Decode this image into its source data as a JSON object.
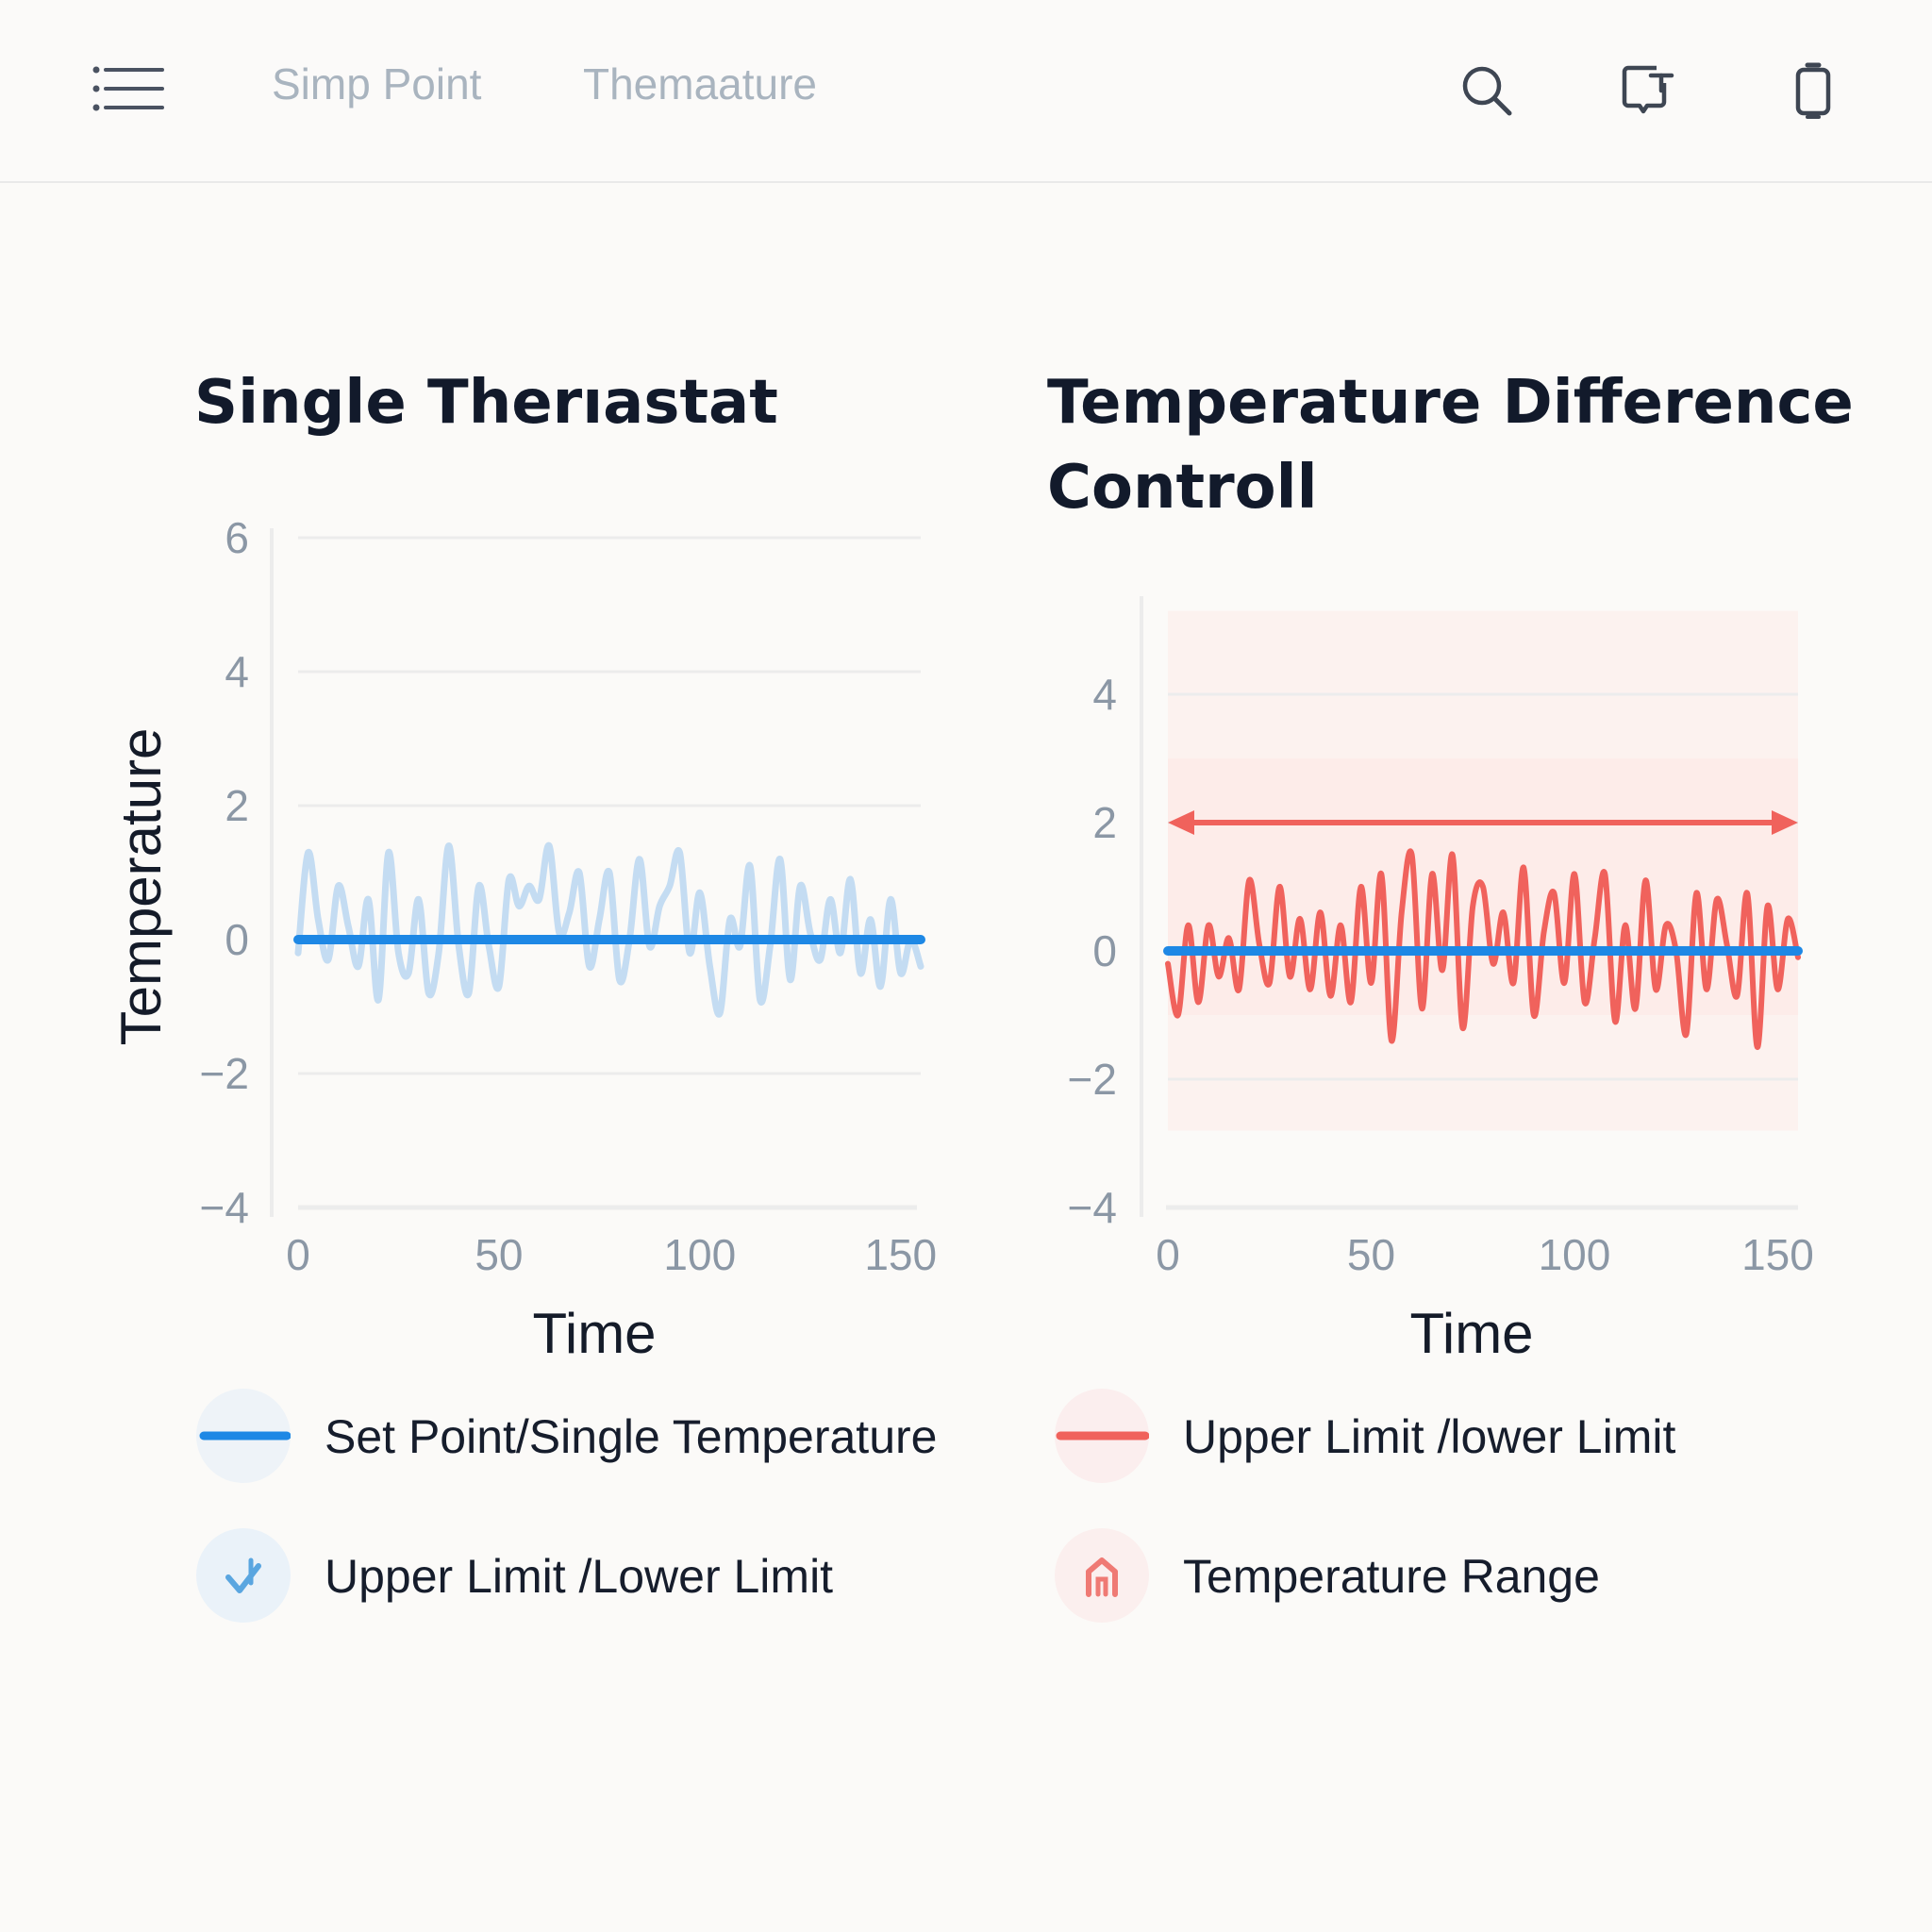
{
  "header": {
    "tabs": [
      {
        "label": "Simp Point"
      },
      {
        "label": "Themaature"
      }
    ],
    "icons": [
      "menu-icon",
      "search-icon",
      "export-icon",
      "battery-icon"
    ]
  },
  "colors": {
    "blue": "#1e88e5",
    "blue_light": "#c4dcf2",
    "red": "#f0625c",
    "red_band": "#fdebe7",
    "grid": "#ececec",
    "text_dark": "#141b29",
    "tick": "#8b97a5"
  },
  "legend": [
    {
      "label": "Set Point/Single Temperature",
      "icon": "blue-line-icon"
    },
    {
      "label": "Upper Limit /lower Limit",
      "icon": "red-line-icon"
    },
    {
      "label": "Upper Limit /Lower Limit",
      "icon": "check-arrow-icon"
    },
    {
      "label": "Temperature Range",
      "icon": "house-icon"
    }
  ],
  "chart_data": [
    {
      "type": "line",
      "title": "Single Therıastat",
      "xlabel": "Time",
      "ylabel": "Temperature",
      "xlim": [
        0,
        155
      ],
      "ylim": [
        -4,
        6
      ],
      "xticks": [
        0,
        50,
        100,
        150
      ],
      "yticks": [
        6,
        4,
        2,
        0,
        -2,
        -4
      ],
      "grid": true,
      "series": [
        {
          "role": "fluctuation",
          "x": [
            0,
            2.5,
            5,
            7.5,
            10,
            12.5,
            15,
            17.5,
            20,
            22.5,
            25,
            27.5,
            30,
            32.5,
            35,
            37.5,
            40,
            42.5,
            45,
            47.5,
            50,
            52.5,
            55,
            57.5,
            60,
            62.5,
            65,
            67.5,
            70,
            72.5,
            75,
            77.5,
            80,
            82.5,
            85,
            87.5,
            90,
            92.5,
            95,
            97.5,
            100,
            102.5,
            105,
            107.5,
            110,
            112.5,
            115,
            117.5,
            120,
            122.5,
            125,
            127.5,
            130,
            132.5,
            135,
            137.5,
            140,
            142.5,
            145,
            147.5,
            150,
            152.5,
            155
          ],
          "y": [
            -0.2,
            1.3,
            0.3,
            -0.3,
            0.8,
            0.2,
            -0.4,
            0.6,
            -0.9,
            1.3,
            -0.2,
            -0.5,
            0.6,
            -0.8,
            -0.2,
            1.4,
            -0.1,
            -0.8,
            0.8,
            -0.1,
            -0.7,
            0.9,
            0.5,
            0.8,
            0.6,
            1.4,
            0.1,
            0.4,
            1.0,
            -0.4,
            0.3,
            1.0,
            -0.6,
            0.0,
            1.2,
            -0.1,
            0.5,
            0.8,
            1.3,
            -0.2,
            0.7,
            -0.4,
            -1.1,
            0.3,
            -0.1,
            1.1,
            -0.9,
            -0.1,
            1.2,
            -0.6,
            0.8,
            0.1,
            -0.3,
            0.6,
            -0.2,
            0.9,
            -0.5,
            0.3,
            -0.7,
            0.6,
            -0.5,
            0.0,
            -0.4
          ]
        },
        {
          "role": "setpoint",
          "x": [
            0,
            155
          ],
          "y": [
            0,
            0
          ]
        }
      ]
    },
    {
      "type": "line",
      "title": "Temperature Difference Controll",
      "xlabel": "Time",
      "ylabel": "",
      "xlim": [
        0,
        155
      ],
      "ylim": [
        -4,
        5.5
      ],
      "xticks": [
        0,
        50,
        100,
        150
      ],
      "yticks": [
        4,
        2,
        0,
        -2,
        -4
      ],
      "grid": true,
      "bands": [
        {
          "from": -2.8,
          "to": 5.3,
          "opacity": "light"
        },
        {
          "from": -1.0,
          "to": 3.0,
          "opacity": "medium"
        }
      ],
      "arrow": {
        "y": 2.0,
        "x_from": 0,
        "x_to": 155
      },
      "series": [
        {
          "role": "fluctuation",
          "x": [
            0,
            2.5,
            5,
            7.5,
            10,
            12.5,
            15,
            17.5,
            20,
            22.5,
            25,
            27.5,
            30,
            32.5,
            35,
            37.5,
            40,
            42.5,
            45,
            47.5,
            50,
            52.5,
            55,
            57.5,
            60,
            62.5,
            65,
            67.5,
            70,
            72.5,
            75,
            77.5,
            80,
            82.5,
            85,
            87.5,
            90,
            92.5,
            95,
            97.5,
            100,
            102.5,
            105,
            107.5,
            110,
            112.5,
            115,
            117.5,
            120,
            122.5,
            125,
            127.5,
            130,
            132.5,
            135,
            137.5,
            140,
            142.5,
            145,
            147.5,
            150,
            152.5,
            155
          ],
          "y": [
            -0.2,
            -1.0,
            0.4,
            -0.8,
            0.4,
            -0.4,
            0.2,
            -0.6,
            1.1,
            0.1,
            -0.5,
            1.0,
            -0.4,
            0.5,
            -0.6,
            0.6,
            -0.7,
            0.4,
            -0.8,
            1.0,
            -0.5,
            1.2,
            -1.4,
            0.6,
            1.5,
            -0.9,
            1.2,
            -0.3,
            1.5,
            -1.2,
            0.7,
            1.0,
            -0.2,
            0.6,
            -0.5,
            1.3,
            -1.0,
            0.3,
            0.9,
            -0.5,
            1.2,
            -0.8,
            0.2,
            1.2,
            -1.1,
            0.4,
            -0.9,
            1.1,
            -0.6,
            0.4,
            0.0,
            -1.3,
            0.9,
            -0.6,
            0.8,
            0.1,
            -0.7,
            0.9,
            -1.5,
            0.7,
            -0.6,
            0.5,
            -0.1
          ]
        },
        {
          "role": "setpoint",
          "x": [
            0,
            155
          ],
          "y": [
            0,
            0
          ]
        }
      ]
    }
  ]
}
